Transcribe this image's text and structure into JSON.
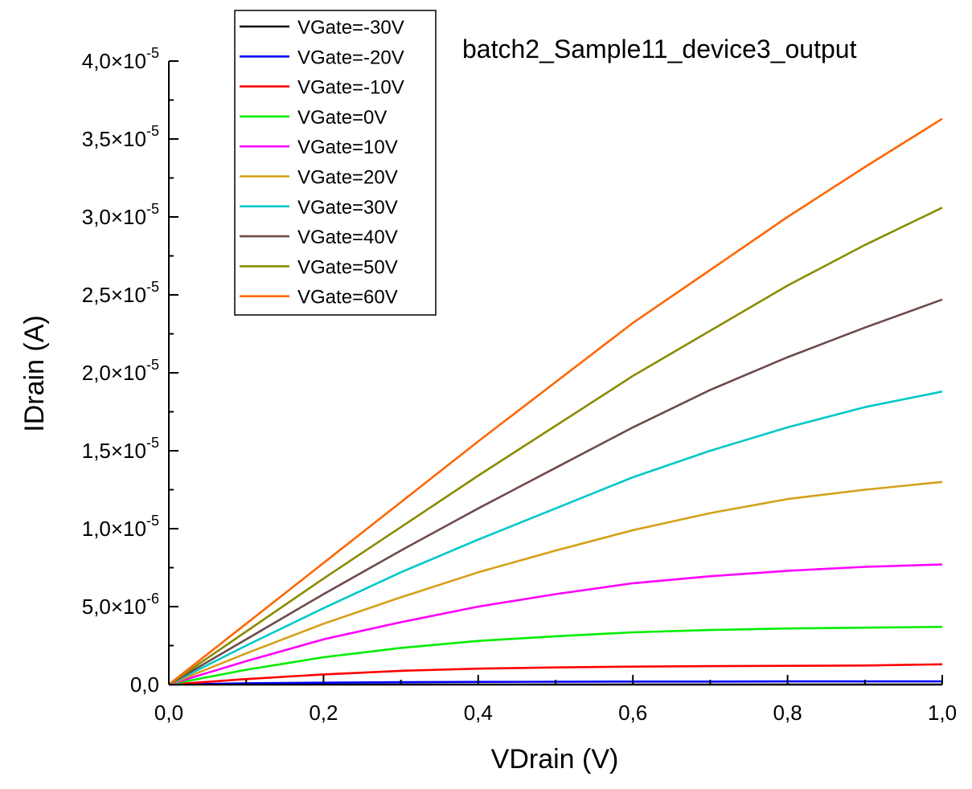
{
  "chart_data": {
    "type": "line",
    "title": "batch2_Sample11_device3_output",
    "xlabel": "VDrain (V)",
    "ylabel": "IDrain (A)",
    "xlim": [
      0,
      1.0
    ],
    "ylim": [
      0,
      4e-05
    ],
    "x_ticks": [
      {
        "value": 0.0,
        "label": "0,0"
      },
      {
        "value": 0.2,
        "label": "0,2"
      },
      {
        "value": 0.4,
        "label": "0,4"
      },
      {
        "value": 0.6,
        "label": "0,6"
      },
      {
        "value": 0.8,
        "label": "0,8"
      },
      {
        "value": 1.0,
        "label": "1,0"
      }
    ],
    "y_ticks": [
      {
        "value": 0,
        "mantissa": "0,0",
        "exponent": ""
      },
      {
        "value": 5e-06,
        "mantissa": "5,0×10",
        "exponent": "-6"
      },
      {
        "value": 1e-05,
        "mantissa": "1,0×10",
        "exponent": "-5"
      },
      {
        "value": 1.5e-05,
        "mantissa": "1,5×10",
        "exponent": "-5"
      },
      {
        "value": 2e-05,
        "mantissa": "2,0×10",
        "exponent": "-5"
      },
      {
        "value": 2.5e-05,
        "mantissa": "2,5×10",
        "exponent": "-5"
      },
      {
        "value": 3e-05,
        "mantissa": "3,0×10",
        "exponent": "-5"
      },
      {
        "value": 3.5e-05,
        "mantissa": "3,5×10",
        "exponent": "-5"
      },
      {
        "value": 4e-05,
        "mantissa": "4,0×10",
        "exponent": "-5"
      }
    ],
    "grid": false,
    "legend_position": "top-left",
    "x": [
      0.0,
      0.1,
      0.2,
      0.3,
      0.4,
      0.5,
      0.6,
      0.7,
      0.8,
      0.9,
      1.0
    ],
    "series": [
      {
        "name": "VGate=-30V",
        "color": "#000000",
        "values": [
          0,
          0,
          0,
          0,
          0,
          0,
          0,
          0,
          0,
          0,
          0
        ]
      },
      {
        "name": "VGate=-20V",
        "color": "#0000ff",
        "values": [
          0,
          8e-08,
          1.2e-07,
          1.5e-07,
          1.7e-07,
          1.8e-07,
          1.9e-07,
          1.9e-07,
          2e-07,
          2e-07,
          2e-07
        ]
      },
      {
        "name": "VGate=-10V",
        "color": "#ff0000",
        "values": [
          0,
          3.5e-07,
          6.5e-07,
          8.8e-07,
          1.02e-06,
          1.1e-06,
          1.15e-06,
          1.18e-06,
          1.2e-06,
          1.22e-06,
          1.3e-06
        ]
      },
      {
        "name": "VGate=0V",
        "color": "#00ee00",
        "values": [
          0,
          9.5e-07,
          1.75e-06,
          2.35e-06,
          2.8e-06,
          3.1e-06,
          3.35e-06,
          3.5e-06,
          3.6e-06,
          3.65e-06,
          3.7e-06
        ]
      },
      {
        "name": "VGate=10V",
        "color": "#ff00ff",
        "values": [
          0,
          1.5e-06,
          2.9e-06,
          4e-06,
          5e-06,
          5.8e-06,
          6.5e-06,
          6.95e-06,
          7.3e-06,
          7.55e-06,
          7.7e-06
        ]
      },
      {
        "name": "VGate=20V",
        "color": "#d4a017",
        "values": [
          0,
          2e-06,
          3.9e-06,
          5.6e-06,
          7.2e-06,
          8.6e-06,
          9.9e-06,
          1.1e-05,
          1.19e-05,
          1.25e-05,
          1.3e-05
        ]
      },
      {
        "name": "VGate=30V",
        "color": "#00c8c8",
        "values": [
          0,
          2.5e-06,
          4.9e-06,
          7.2e-06,
          9.3e-06,
          1.13e-05,
          1.33e-05,
          1.5e-05,
          1.65e-05,
          1.78e-05,
          1.88e-05
        ]
      },
      {
        "name": "VGate=40V",
        "color": "#6e4a4a",
        "values": [
          0,
          2.9e-06,
          5.8e-06,
          8.6e-06,
          1.13e-05,
          1.39e-05,
          1.65e-05,
          1.89e-05,
          2.1e-05,
          2.29e-05,
          2.47e-05
        ]
      },
      {
        "name": "VGate=50V",
        "color": "#8b8b00",
        "values": [
          0,
          3.4e-06,
          6.8e-06,
          1.01e-05,
          1.34e-05,
          1.66e-05,
          1.98e-05,
          2.27e-05,
          2.56e-05,
          2.82e-05,
          3.06e-05
        ]
      },
      {
        "name": "VGate=60V",
        "color": "#ff6600",
        "values": [
          0,
          3.9e-06,
          7.8e-06,
          1.17e-05,
          1.56e-05,
          1.94e-05,
          2.32e-05,
          2.66e-05,
          3e-05,
          3.32e-05,
          3.63e-05
        ]
      }
    ]
  }
}
